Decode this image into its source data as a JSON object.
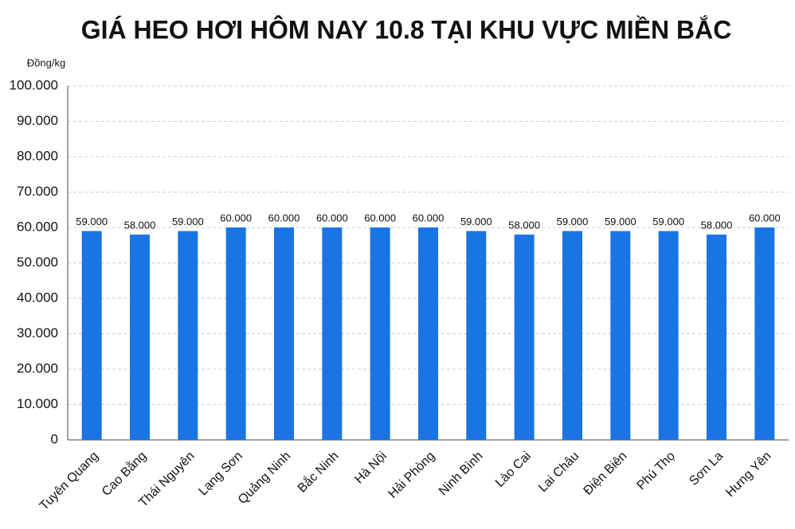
{
  "chart_data": {
    "type": "bar",
    "title": "GIÁ HEO HƠI HÔM NAY 10.8 TẠI KHU VỰC MIỀN BẮC",
    "y_label": "Đồng/kg",
    "categories": [
      "Tuyên Quang",
      "Cao Bằng",
      "Thái Nguyên",
      "Lạng Sơn",
      "Quảng Ninh",
      "Bắc Ninh",
      "Hà Nội",
      "Hải Phòng",
      "Ninh Bình",
      "Lào Cai",
      "Lai Châu",
      "Điện Biên",
      "Phú Thọ",
      "Sơn La",
      "Hưng Yên"
    ],
    "values": [
      59000,
      58000,
      59000,
      60000,
      60000,
      60000,
      60000,
      60000,
      59000,
      58000,
      59000,
      59000,
      59000,
      58000,
      60000
    ],
    "value_labels": [
      "59.000",
      "58.000",
      "59.000",
      "60.000",
      "60.000",
      "60.000",
      "60.000",
      "60.000",
      "59.000",
      "58.000",
      "59.000",
      "59.000",
      "59.000",
      "58.000",
      "60.000"
    ],
    "color": "#1b74e4",
    "ylim": [
      0,
      100000
    ],
    "yticks": [
      0,
      {
        "value": 10000,
        "label": "10.000"
      },
      {
        "value": 20000,
        "label": "20.000"
      },
      {
        "value": 30000,
        "label": "30.000"
      },
      {
        "value": 40000,
        "label": "40.000"
      },
      {
        "value": 50000,
        "label": "50.000"
      },
      {
        "value": 60000,
        "label": "60.000"
      },
      {
        "value": 70000,
        "label": "70.000"
      },
      {
        "value": 80000,
        "label": "80.000"
      },
      {
        "value": 90000,
        "label": "90.000"
      },
      {
        "value": 100000,
        "label": "100.000"
      }
    ],
    "grid": true
  }
}
